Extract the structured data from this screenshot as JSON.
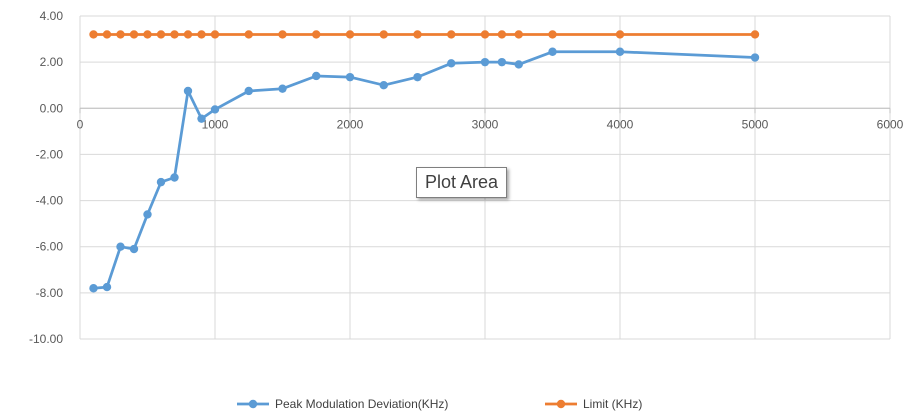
{
  "tooltip": {
    "label": "Plot Area"
  },
  "chart_data": {
    "type": "line",
    "xlim": [
      0,
      6000
    ],
    "ylim": [
      -10,
      4
    ],
    "x_ticks": [
      "0",
      "1000",
      "2000",
      "3000",
      "4000",
      "5000",
      "6000"
    ],
    "y_ticks": [
      "4.00",
      "2.00",
      "0.00",
      "-2.00",
      "-4.00",
      "-6.00",
      "-8.00",
      "-10.00"
    ],
    "grid": true,
    "legend_position": "bottom",
    "series": [
      {
        "name": "Peak Modulation Deviation(KHz)",
        "color": "#5b9bd5",
        "x": [
          100,
          200,
          300,
          400,
          500,
          600,
          700,
          800,
          900,
          1000,
          1250,
          1500,
          1750,
          2000,
          2250,
          2500,
          2750,
          3000,
          3125,
          3250,
          3500,
          4000,
          5000
        ],
        "y": [
          -7.8,
          -7.75,
          -6.0,
          -6.1,
          -4.6,
          -3.2,
          -3.0,
          0.75,
          -0.45,
          -0.05,
          0.75,
          0.85,
          1.4,
          1.35,
          1.0,
          1.35,
          1.95,
          2.0,
          2.0,
          1.9,
          2.45,
          2.45,
          2.2
        ]
      },
      {
        "name": "Limit  (KHz)",
        "color": "#ed7d31",
        "x": [
          100,
          200,
          300,
          400,
          500,
          600,
          700,
          800,
          900,
          1000,
          1250,
          1500,
          1750,
          2000,
          2250,
          2500,
          2750,
          3000,
          3125,
          3250,
          3500,
          4000,
          5000
        ],
        "y": [
          3.2,
          3.2,
          3.2,
          3.2,
          3.2,
          3.2,
          3.2,
          3.2,
          3.2,
          3.2,
          3.2,
          3.2,
          3.2,
          3.2,
          3.2,
          3.2,
          3.2,
          3.2,
          3.2,
          3.2,
          3.2,
          3.2,
          3.2
        ]
      }
    ]
  }
}
